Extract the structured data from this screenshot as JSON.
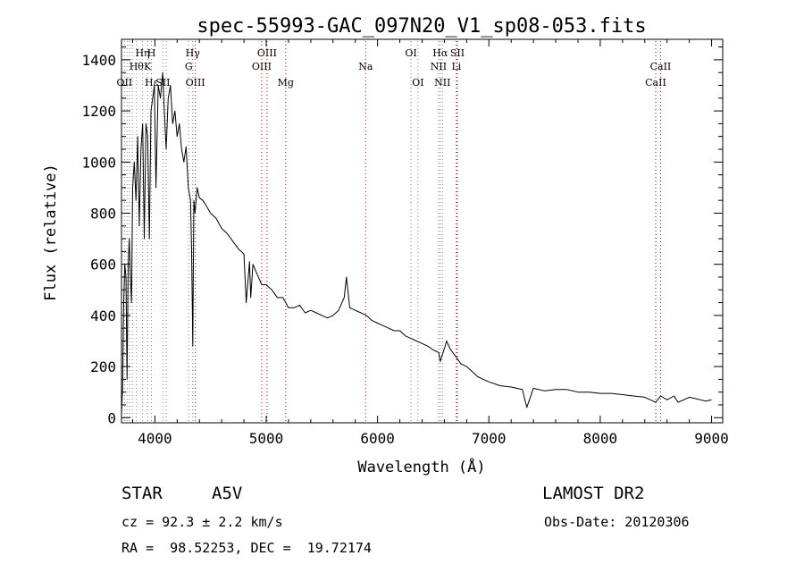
{
  "chart_data": {
    "type": "line",
    "title": "spec-55993-GAC_097N20_V1_sp08-053.fits",
    "xlabel": "Wavelength (Å)",
    "ylabel": "Flux (relative)",
    "xlim": [
      3700,
      9100
    ],
    "ylim": [
      -20,
      1480
    ],
    "x_ticks": [
      4000,
      5000,
      6000,
      7000,
      8000,
      9000
    ],
    "y_ticks": [
      0,
      200,
      400,
      600,
      800,
      1000,
      1200,
      1400
    ],
    "grid": false,
    "legend": "none",
    "series": [
      {
        "x": [
          3700,
          3710,
          3720,
          3730,
          3740,
          3750,
          3760,
          3770,
          3780,
          3790,
          3800,
          3815,
          3830,
          3845,
          3860,
          3875,
          3890,
          3905,
          3920,
          3935,
          3950,
          3965,
          3980,
          3995,
          4010,
          4030,
          4050,
          4070,
          4090,
          4101,
          4120,
          4140,
          4160,
          4180,
          4200,
          4220,
          4240,
          4260,
          4280,
          4300,
          4320,
          4330,
          4340,
          4350,
          4360,
          4380,
          4400,
          4430,
          4460,
          4500,
          4550,
          4600,
          4650,
          4700,
          4750,
          4800,
          4820,
          4850,
          4861,
          4880,
          4920,
          4960,
          5000,
          5050,
          5100,
          5150,
          5200,
          5250,
          5300,
          5350,
          5400,
          5450,
          5500,
          5550,
          5600,
          5650,
          5700,
          5720,
          5750,
          5800,
          5850,
          5900,
          5950,
          6000,
          6050,
          6100,
          6150,
          6200,
          6250,
          6300,
          6350,
          6400,
          6450,
          6500,
          6550,
          6563,
          6600,
          6620,
          6650,
          6700,
          6750,
          6800,
          6850,
          6900,
          6950,
          7000,
          7100,
          7200,
          7300,
          7340,
          7400,
          7500,
          7600,
          7700,
          7800,
          7900,
          8000,
          8100,
          8200,
          8300,
          8400,
          8450,
          8498,
          8542,
          8600,
          8662,
          8700,
          8800,
          8850,
          8900,
          8950,
          9000
        ],
        "y": [
          10,
          120,
          450,
          600,
          550,
          150,
          600,
          700,
          550,
          450,
          900,
          1000,
          850,
          1100,
          750,
          1050,
          1150,
          700,
          1150,
          1100,
          700,
          1200,
          1250,
          1300,
          900,
          1300,
          1250,
          1350,
          1150,
          1050,
          1250,
          1300,
          1150,
          1200,
          1100,
          1150,
          1050,
          1000,
          1060,
          900,
          850,
          650,
          280,
          850,
          800,
          900,
          860,
          850,
          830,
          800,
          780,
          740,
          720,
          690,
          660,
          640,
          450,
          610,
          470,
          600,
          560,
          520,
          520,
          500,
          470,
          470,
          430,
          430,
          440,
          410,
          420,
          410,
          400,
          390,
          400,
          420,
          470,
          550,
          430,
          420,
          410,
          400,
          380,
          370,
          360,
          350,
          340,
          340,
          320,
          310,
          300,
          290,
          280,
          265,
          255,
          220,
          270,
          300,
          270,
          240,
          210,
          200,
          180,
          160,
          150,
          140,
          125,
          120,
          110,
          40,
          115,
          105,
          110,
          110,
          100,
          100,
          95,
          95,
          90,
          85,
          80,
          70,
          60,
          85,
          70,
          85,
          60,
          80,
          75,
          70,
          65,
          70
        ]
      }
    ],
    "line_labels": [
      {
        "wl": 3727,
        "label": "OII",
        "row": 3
      },
      {
        "wl": 3835,
        "label": "Hθ",
        "row": 2
      },
      {
        "wl": 3889,
        "label": "Hη",
        "row": 1
      },
      {
        "wl": 3934,
        "label": "K",
        "row": 2
      },
      {
        "wl": 3970,
        "label": "Hε",
        "row": 3
      },
      {
        "wl": 3969,
        "label": "H",
        "row": 1
      },
      {
        "wl": 4072,
        "label": "SII",
        "row": 3
      },
      {
        "wl": 4304,
        "label": "G",
        "row": 2
      },
      {
        "wl": 4340,
        "label": "Hγ",
        "row": 1
      },
      {
        "wl": 4363,
        "label": "OIII",
        "row": 3
      },
      {
        "wl": 4959,
        "label": "OIII",
        "row": 2
      },
      {
        "wl": 5007,
        "label": "OIII",
        "row": 1
      },
      {
        "wl": 5175,
        "label": "Mg",
        "row": 3
      },
      {
        "wl": 5893,
        "label": "Na",
        "row": 2
      },
      {
        "wl": 6300,
        "label": "OI",
        "row": 1
      },
      {
        "wl": 6363,
        "label": "OI",
        "row": 3
      },
      {
        "wl": 6548,
        "label": "NII",
        "row": 2
      },
      {
        "wl": 6563,
        "label": "Hα",
        "row": 1
      },
      {
        "wl": 6583,
        "label": "NII",
        "row": 3
      },
      {
        "wl": 6708,
        "label": "Li",
        "row": 2
      },
      {
        "wl": 6717,
        "label": "SII",
        "row": 1
      },
      {
        "wl": 8498,
        "label": "CaII",
        "row": 3
      },
      {
        "wl": 8542,
        "label": "CaII",
        "row": 2
      }
    ],
    "markers": [
      {
        "wl": 3727,
        "color": "#808080"
      },
      {
        "wl": 3750,
        "color": "#808080"
      },
      {
        "wl": 3771,
        "color": "#808080"
      },
      {
        "wl": 3798,
        "color": "#808080"
      },
      {
        "wl": 3835,
        "color": "#808080"
      },
      {
        "wl": 3889,
        "color": "#808080"
      },
      {
        "wl": 3934,
        "color": "#808080"
      },
      {
        "wl": 3969,
        "color": "#808080"
      },
      {
        "wl": 4072,
        "color": "#808080"
      },
      {
        "wl": 4102,
        "color": "#808080"
      },
      {
        "wl": 4304,
        "color": "#808080"
      },
      {
        "wl": 4340,
        "color": "#808080"
      },
      {
        "wl": 4363,
        "color": "#c00000"
      },
      {
        "wl": 4959,
        "color": "#c00000"
      },
      {
        "wl": 5007,
        "color": "#c00000"
      },
      {
        "wl": 5175,
        "color": "#c00000"
      },
      {
        "wl": 5893,
        "color": "#c00000"
      },
      {
        "wl": 6300,
        "color": "#808080"
      },
      {
        "wl": 6363,
        "color": "#808080"
      },
      {
        "wl": 6548,
        "color": "#808080"
      },
      {
        "wl": 6563,
        "color": "#808080"
      },
      {
        "wl": 6583,
        "color": "#808080"
      },
      {
        "wl": 6708,
        "color": "#c00000"
      },
      {
        "wl": 6717,
        "color": "#c00000"
      },
      {
        "wl": 8498,
        "color": "#c00000"
      },
      {
        "wl": 8542,
        "color": "#c00000"
      }
    ]
  },
  "info": {
    "class_label": "STAR",
    "subclass_label": "A5V",
    "survey": "LAMOST DR2",
    "cz": "cz = 92.3 ± 2.2 km/s",
    "obs_date": "Obs-Date: 20120306",
    "radec": "RA =  98.52253, DEC =  19.72174"
  },
  "colors": {
    "spectrum": "#000000",
    "marker_red": "#c00000",
    "marker_gray": "#808080"
  }
}
